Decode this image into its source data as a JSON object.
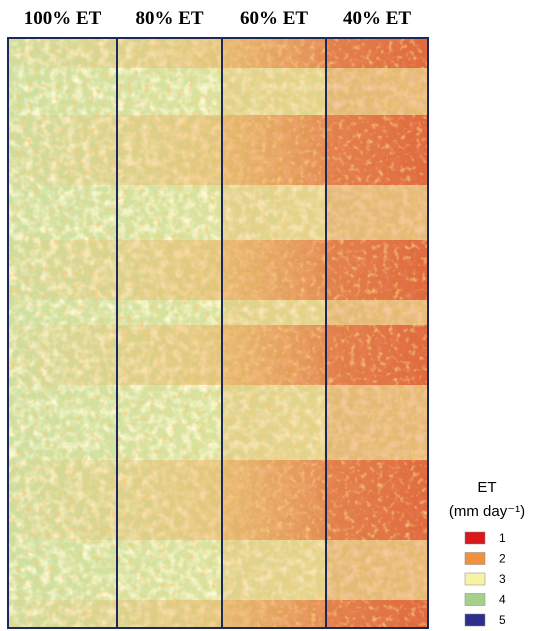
{
  "columns": [
    "100% ET",
    "80% ET",
    "60% ET",
    "40% ET"
  ],
  "legend": {
    "title": "ET",
    "unit": "(mm day⁻¹)",
    "items": [
      {
        "label": "1",
        "color": "#d7191c"
      },
      {
        "label": "2",
        "color": "#f0913f"
      },
      {
        "label": "3",
        "color": "#f8f2a6"
      },
      {
        "label": "4",
        "color": "#a5cf8b"
      },
      {
        "label": "5",
        "color": "#2c2f8c"
      }
    ]
  }
}
